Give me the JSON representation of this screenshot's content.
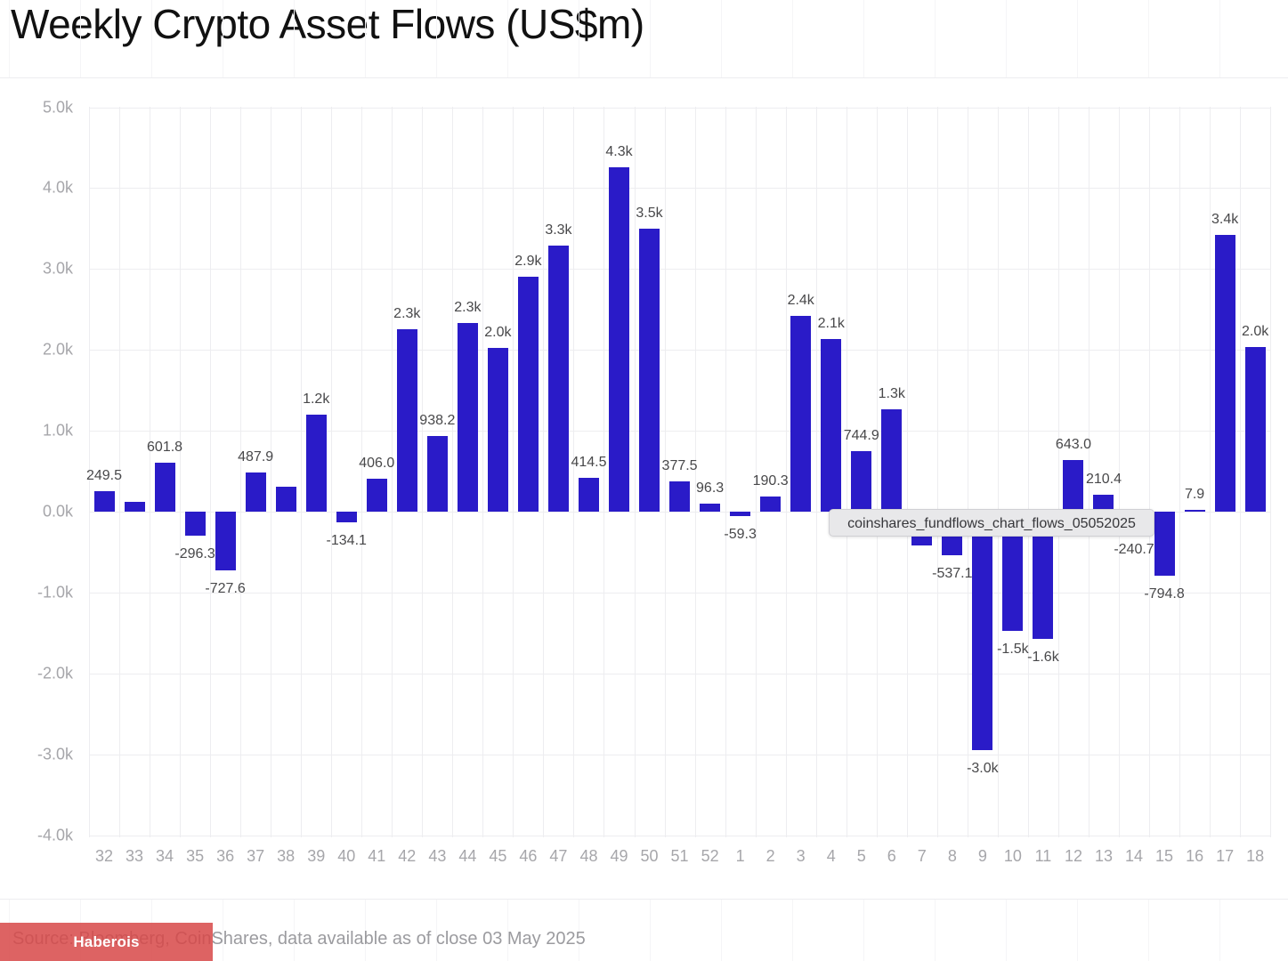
{
  "title": "Weekly Crypto Asset Flows (US$m)",
  "tooltip_text": "coinshares_fundflows_chart_flows_05052025",
  "footer": {
    "source_text": "Source: Bloomberg, CoinShares, data available as of close 03 May 2025",
    "badge_label": "Haberois"
  },
  "colors": {
    "bar": "#2a1bc8",
    "grid": "#ededf0",
    "axis_text": "#a6a6aa",
    "value_label_text": "#48484a",
    "title_text": "#111111",
    "source_text": "#9b9b9f",
    "badge_bg": "#d74848",
    "badge_text": "#ffffff",
    "tooltip_bg": "#e8e8ea",
    "tooltip_text": "#37373b"
  },
  "chart_data": {
    "type": "bar",
    "title": "Weekly Crypto Asset Flows (US$m)",
    "xlabel": "",
    "ylabel": "",
    "ylim": [
      -4000,
      5000
    ],
    "grid": true,
    "legend": false,
    "ytick_labels": [
      "5.0k",
      "4.0k",
      "3.0k",
      "2.0k",
      "1.0k",
      "0.0k",
      "-1.0k",
      "-2.0k",
      "-3.0k",
      "-4.0k"
    ],
    "categories": [
      "32",
      "33",
      "34",
      "35",
      "36",
      "37",
      "38",
      "39",
      "40",
      "41",
      "42",
      "43",
      "44",
      "45",
      "46",
      "47",
      "48",
      "49",
      "50",
      "51",
      "52",
      "1",
      "2",
      "3",
      "4",
      "5",
      "6",
      "7",
      "8",
      "9",
      "10",
      "11",
      "12",
      "13",
      "14",
      "15",
      "16",
      "17",
      "18"
    ],
    "values": [
      249.5,
      125,
      601.8,
      -296.3,
      -727.6,
      487.9,
      310,
      1200,
      -134.1,
      406.0,
      2260,
      938.2,
      2330,
      2020,
      2900,
      3290,
      414.5,
      4260,
      3500,
      377.5,
      96.3,
      -59.3,
      190.3,
      2420,
      2130,
      744.9,
      1270,
      -420,
      -537.1,
      -2950,
      -1470,
      -1570,
      643.0,
      210.4,
      -240.7,
      -794.8,
      7.9,
      3420,
      2030
    ],
    "bar_labels": [
      "249.5",
      "",
      "601.8",
      "-296.3",
      "-727.6",
      "487.9",
      "",
      "1.2k",
      "-134.1",
      "406.0",
      "2.3k",
      "938.2",
      "2.3k",
      "2.0k",
      "2.9k",
      "3.3k",
      "414.5",
      "4.3k",
      "3.5k",
      "377.5",
      "96.3",
      "-59.3",
      "190.3",
      "2.4k",
      "2.1k",
      "744.9",
      "1.3k",
      "",
      "-537.1",
      "-3.0k",
      "-1.5k",
      "-1.6k",
      "643.0",
      "210.4",
      "-240.7",
      "-794.8",
      "7.9",
      "3.4k",
      "2.0k"
    ]
  }
}
